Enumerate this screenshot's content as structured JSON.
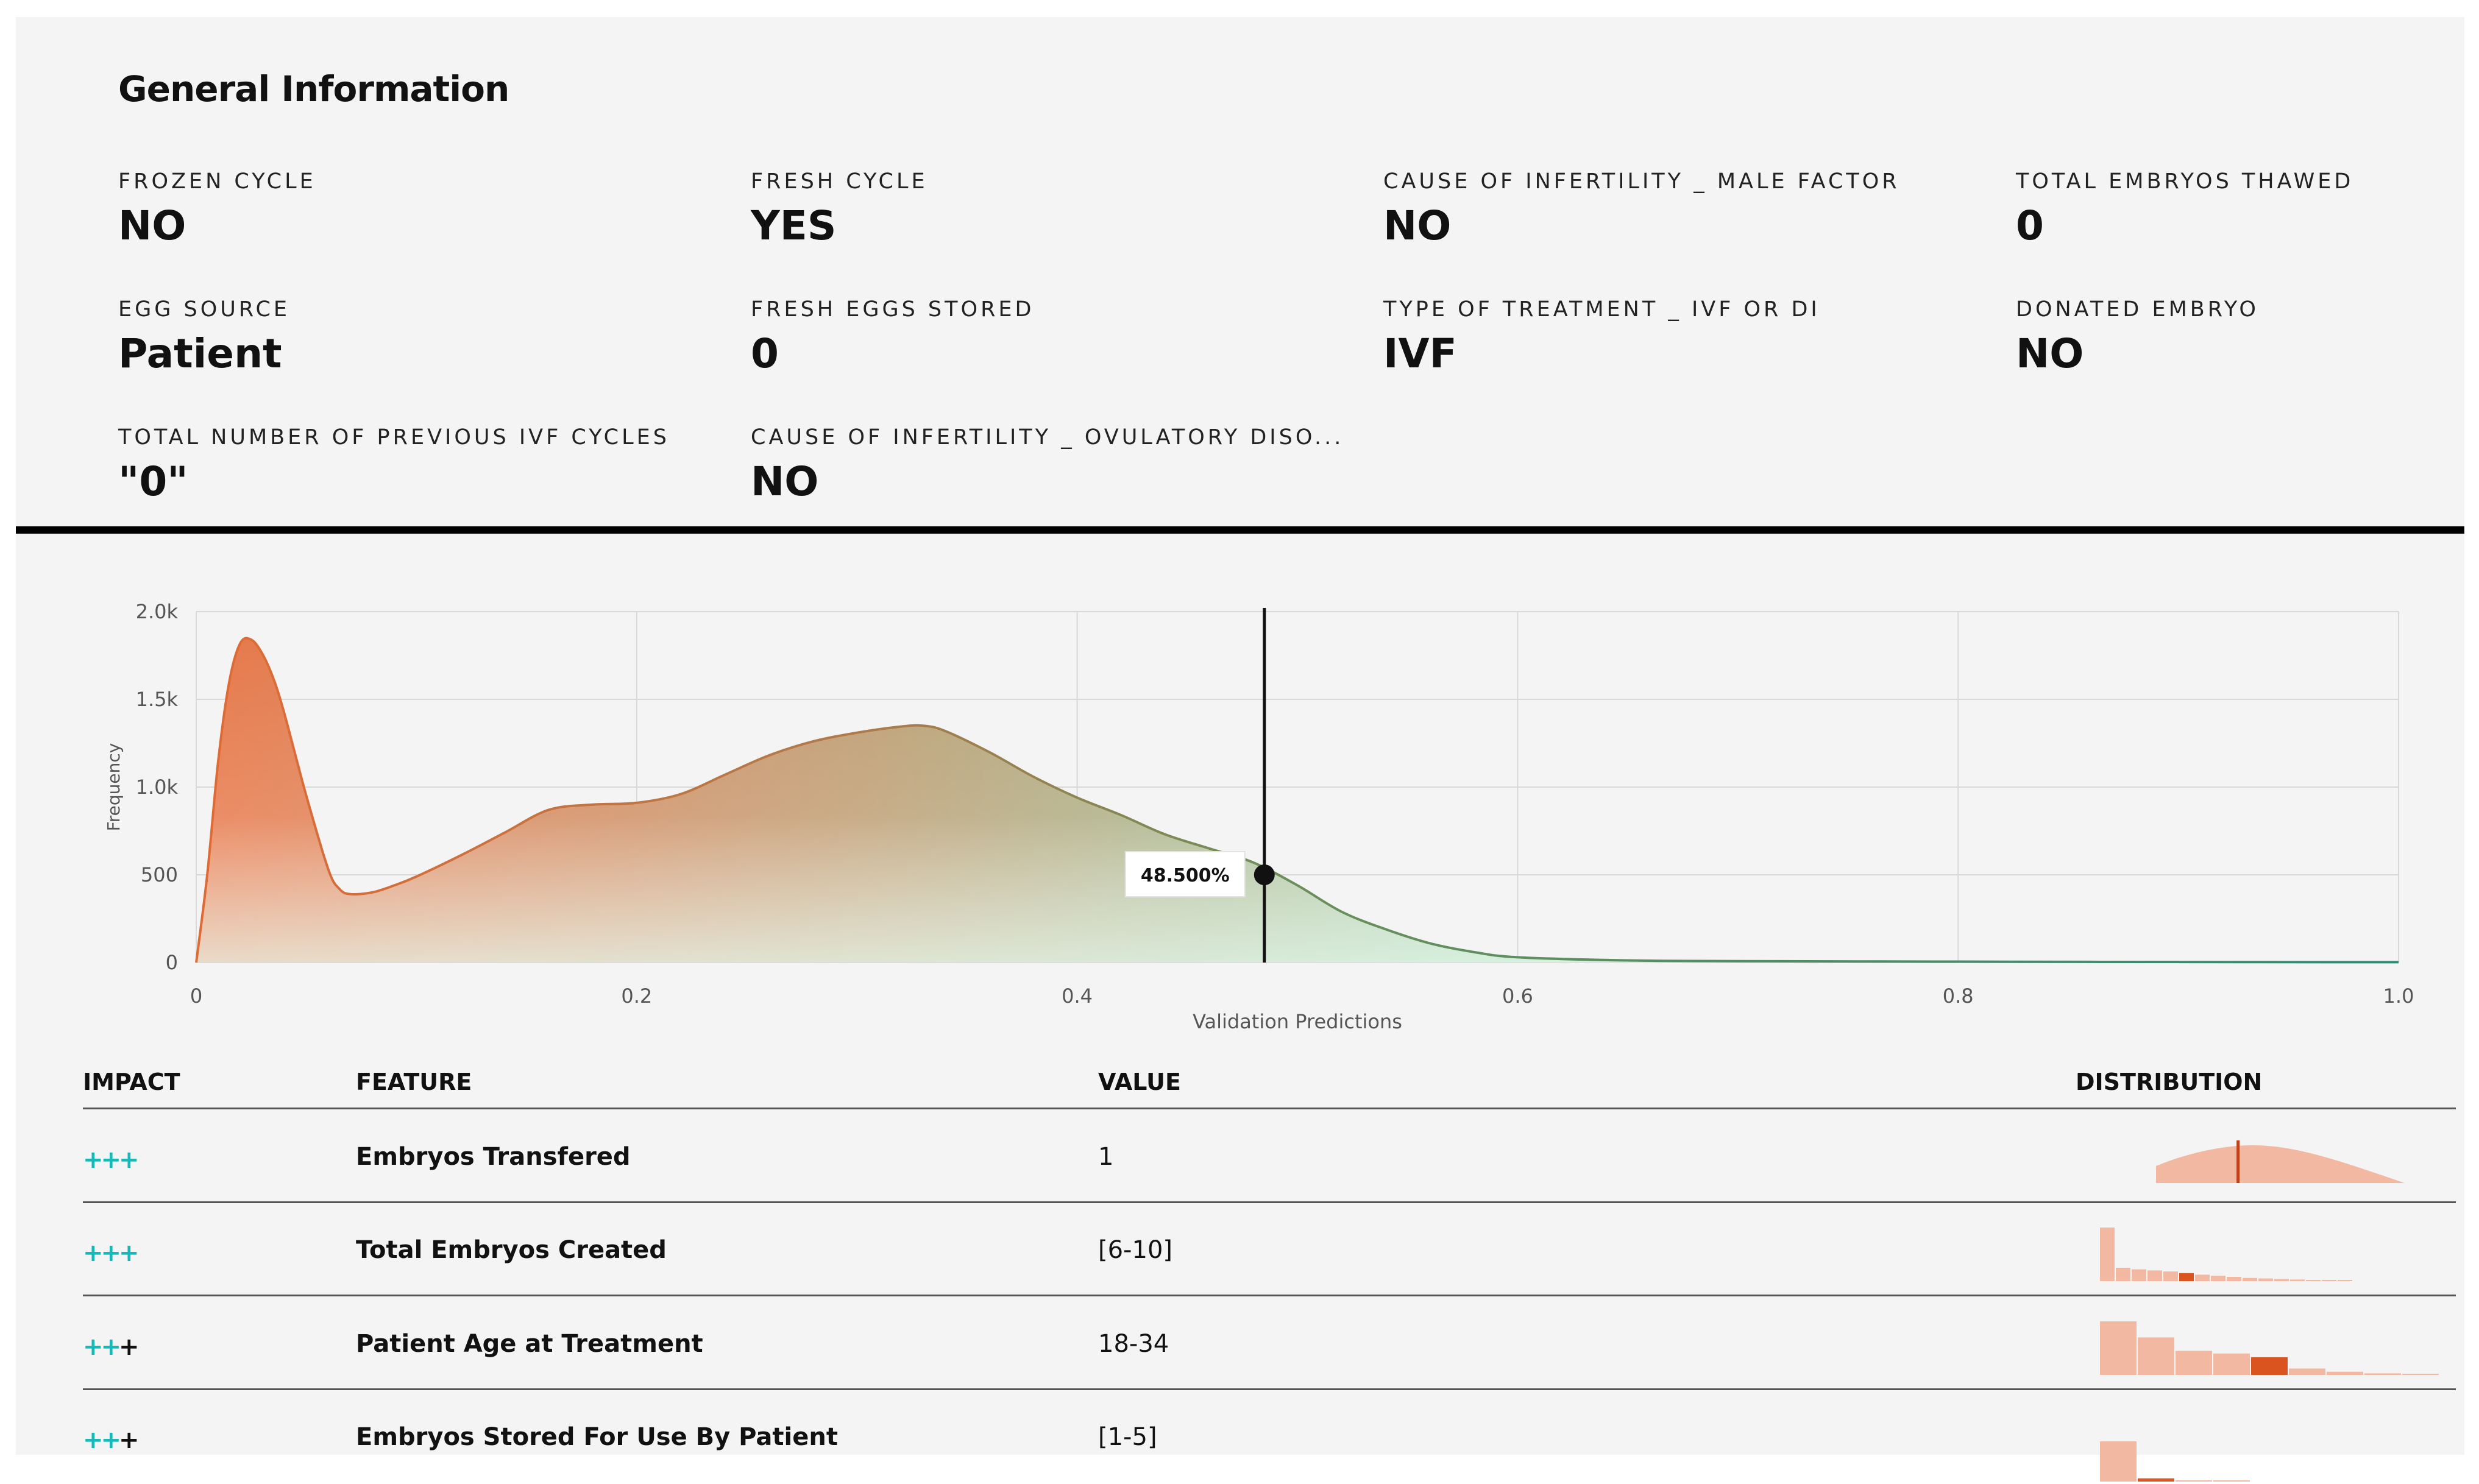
{
  "general_info": {
    "title": "General Information",
    "fields": [
      {
        "label": "FROZEN CYCLE",
        "value": "NO"
      },
      {
        "label": "FRESH CYCLE",
        "value": "YES"
      },
      {
        "label": "CAUSE OF INFERTILITY _ MALE FACTOR",
        "value": "NO"
      },
      {
        "label": "TOTAL EMBRYOS THAWED",
        "value": "0"
      },
      {
        "label": "EGG SOURCE",
        "value": "Patient"
      },
      {
        "label": "FRESH EGGS STORED",
        "value": "0"
      },
      {
        "label": "TYPE OF TREATMENT _ IVF OR DI",
        "value": "IVF"
      },
      {
        "label": "DONATED EMBRYO",
        "value": "NO"
      },
      {
        "label": "TOTAL NUMBER OF PREVIOUS IVF CYCLES",
        "value": "\"0\""
      },
      {
        "label": "CAUSE OF INFERTILITY _ OVULATORY DISO...",
        "value": "NO"
      }
    ]
  },
  "chart_data": {
    "type": "area",
    "xlabel": "Validation Predictions",
    "ylabel": "Frequency",
    "xlim": [
      0,
      1.0
    ],
    "ylim": [
      0,
      2000
    ],
    "x_ticks": [
      "0",
      "0.2",
      "0.4",
      "0.6",
      "0.8",
      "1.0"
    ],
    "y_ticks": [
      "0",
      "500",
      "1.0k",
      "1.5k",
      "2.0k"
    ],
    "grid": true,
    "series": [
      {
        "x": [
          0,
          0.005,
          0.01,
          0.015,
          0.02,
          0.025,
          0.03,
          0.035,
          0.04,
          0.05,
          0.06,
          0.065,
          0.07,
          0.08,
          0.09,
          0.1,
          0.12,
          0.14,
          0.16,
          0.18,
          0.2,
          0.22,
          0.24,
          0.26,
          0.28,
          0.3,
          0.32,
          0.33,
          0.34,
          0.36,
          0.38,
          0.4,
          0.42,
          0.44,
          0.46,
          0.48,
          0.5,
          0.52,
          0.54,
          0.56,
          0.58,
          0.6,
          0.65,
          0.7,
          0.8,
          0.9,
          1.0
        ],
        "y": [
          0,
          500,
          1150,
          1600,
          1820,
          1840,
          1760,
          1620,
          1420,
          950,
          530,
          420,
          390,
          400,
          440,
          490,
          610,
          740,
          870,
          900,
          910,
          960,
          1070,
          1180,
          1260,
          1310,
          1345,
          1350,
          1320,
          1200,
          1060,
          940,
          840,
          730,
          650,
          570,
          440,
          290,
          190,
          110,
          60,
          30,
          12,
          8,
          5,
          3,
          2
        ]
      }
    ],
    "marker": {
      "x": 0.485,
      "y": 500,
      "label": "48.500%"
    }
  },
  "table": {
    "headers": {
      "impact": "IMPACT",
      "feature": "FEATURE",
      "value": "VALUE",
      "distribution": "DISTRIBUTION"
    },
    "rows": [
      {
        "impact": 3,
        "feature": "Embryos Transfered",
        "value": "1",
        "distribution": {
          "type": "curve",
          "highlight": 0.33
        }
      },
      {
        "impact": 3,
        "feature": "Total Embryos Created",
        "value": "[6-10]",
        "distribution": {
          "type": "bars",
          "values": [
            1.0,
            0.25,
            0.22,
            0.2,
            0.18,
            0.15,
            0.12,
            0.1,
            0.08,
            0.06,
            0.05,
            0.04,
            0.03,
            0.02,
            0.015,
            0.01
          ],
          "highlight": 5
        }
      },
      {
        "impact": 2,
        "feature": "Patient Age at Treatment",
        "value": "18-34",
        "distribution": {
          "type": "bars",
          "values": [
            1.0,
            0.7,
            0.45,
            0.4,
            0.33,
            0.12,
            0.06,
            0.03,
            0.015
          ],
          "highlight": 4
        }
      },
      {
        "impact": 2,
        "feature": "Embryos Stored For Use By Patient",
        "value": "[1-5]",
        "distribution": {
          "type": "bars",
          "values": [
            1.0,
            0.08,
            0.03,
            0.02
          ],
          "highlight": 1
        }
      }
    ]
  },
  "colors": {
    "impact_on": "#19b8b8",
    "impact_off": "#111111",
    "dist_bar": "#f2b8a2",
    "dist_highlight": "#d9541e",
    "curve_orange": "#e8784a",
    "curve_green": "#4aa080"
  }
}
